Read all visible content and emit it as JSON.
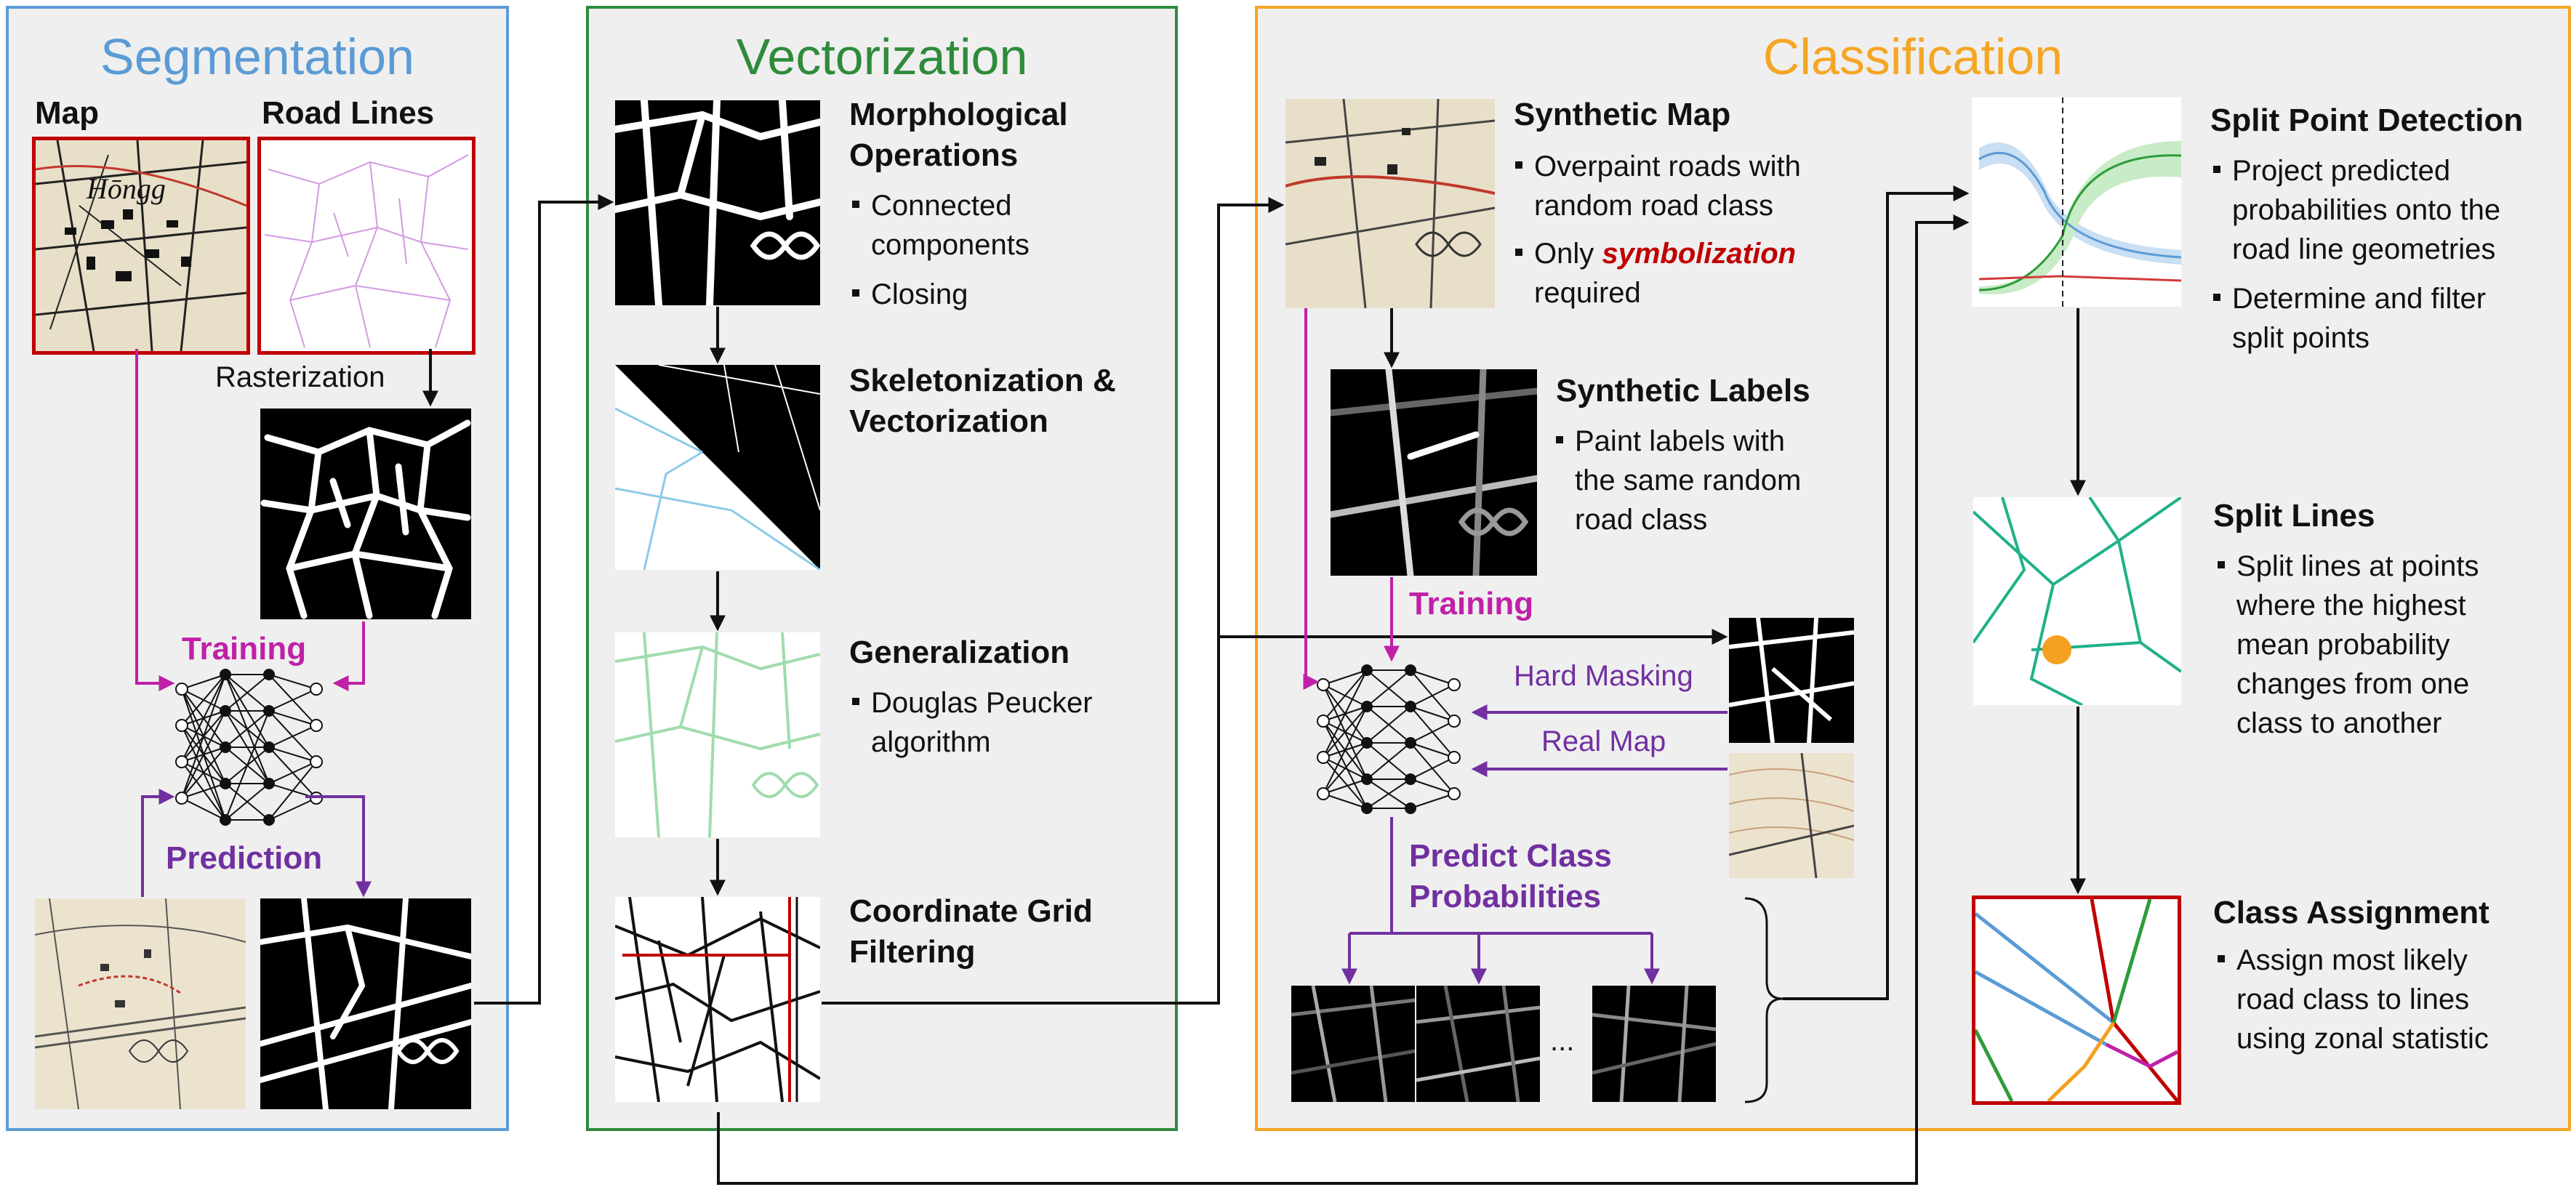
{
  "segmentation": {
    "title": "Segmentation",
    "map_label": "Map",
    "road_lines_label": "Road Lines",
    "rasterization_label": "Rasterization",
    "training_label": "Training",
    "prediction_label": "Prediction",
    "color": "#5b9bd5"
  },
  "vectorization": {
    "title": "Vectorization",
    "color": "#2e8b3a",
    "steps": [
      {
        "title_lines": [
          "Morphological",
          "Operations"
        ],
        "bullets": [
          [
            "Connected",
            "components"
          ],
          [
            "Closing"
          ]
        ]
      },
      {
        "title_lines": [
          "Skeletonization &",
          "Vectorization"
        ],
        "bullets": []
      },
      {
        "title_lines": [
          "Generalization"
        ],
        "bullets": [
          [
            "Douglas Peucker",
            "algorithm"
          ]
        ]
      },
      {
        "title_lines": [
          "Coordinate Grid",
          "Filtering"
        ],
        "bullets": []
      }
    ]
  },
  "classification": {
    "title": "Classification",
    "color": "#f5a623",
    "synthetic_map": {
      "title": "Synthetic Map",
      "bullet1": [
        "Overpaint roads with",
        "random road class"
      ],
      "bullet2_pre": "Only ",
      "bullet2_em": "symbolization",
      "bullet2_post": "required"
    },
    "synthetic_labels": {
      "title": "Synthetic Labels",
      "bullet": [
        "Paint labels with",
        "the same random",
        "road class"
      ]
    },
    "training_label": "Training",
    "hard_masking_label": "Hard Masking",
    "real_map_label": "Real Map",
    "predict_label": [
      "Predict Class",
      "Probabilities"
    ],
    "ellipsis": "...",
    "split_point": {
      "title": "Split Point Detection",
      "bullets": [
        [
          "Project predicted",
          "probabilities onto the",
          "road line geometries"
        ],
        [
          "Determine and filter",
          "split points"
        ]
      ]
    },
    "split_lines": {
      "title": "Split Lines",
      "bullet": [
        "Split lines at points",
        "where the highest",
        "mean probability",
        "changes from one",
        "class to another"
      ]
    },
    "class_assignment": {
      "title": "Class Assignment",
      "bullet": [
        "Assign most likely",
        "road class to lines",
        "using zonal statistic"
      ]
    }
  },
  "colors": {
    "purple": "#7030a0",
    "magenta": "#c020a8",
    "red_frame": "#c00000",
    "road_teal": "#20b08a"
  }
}
